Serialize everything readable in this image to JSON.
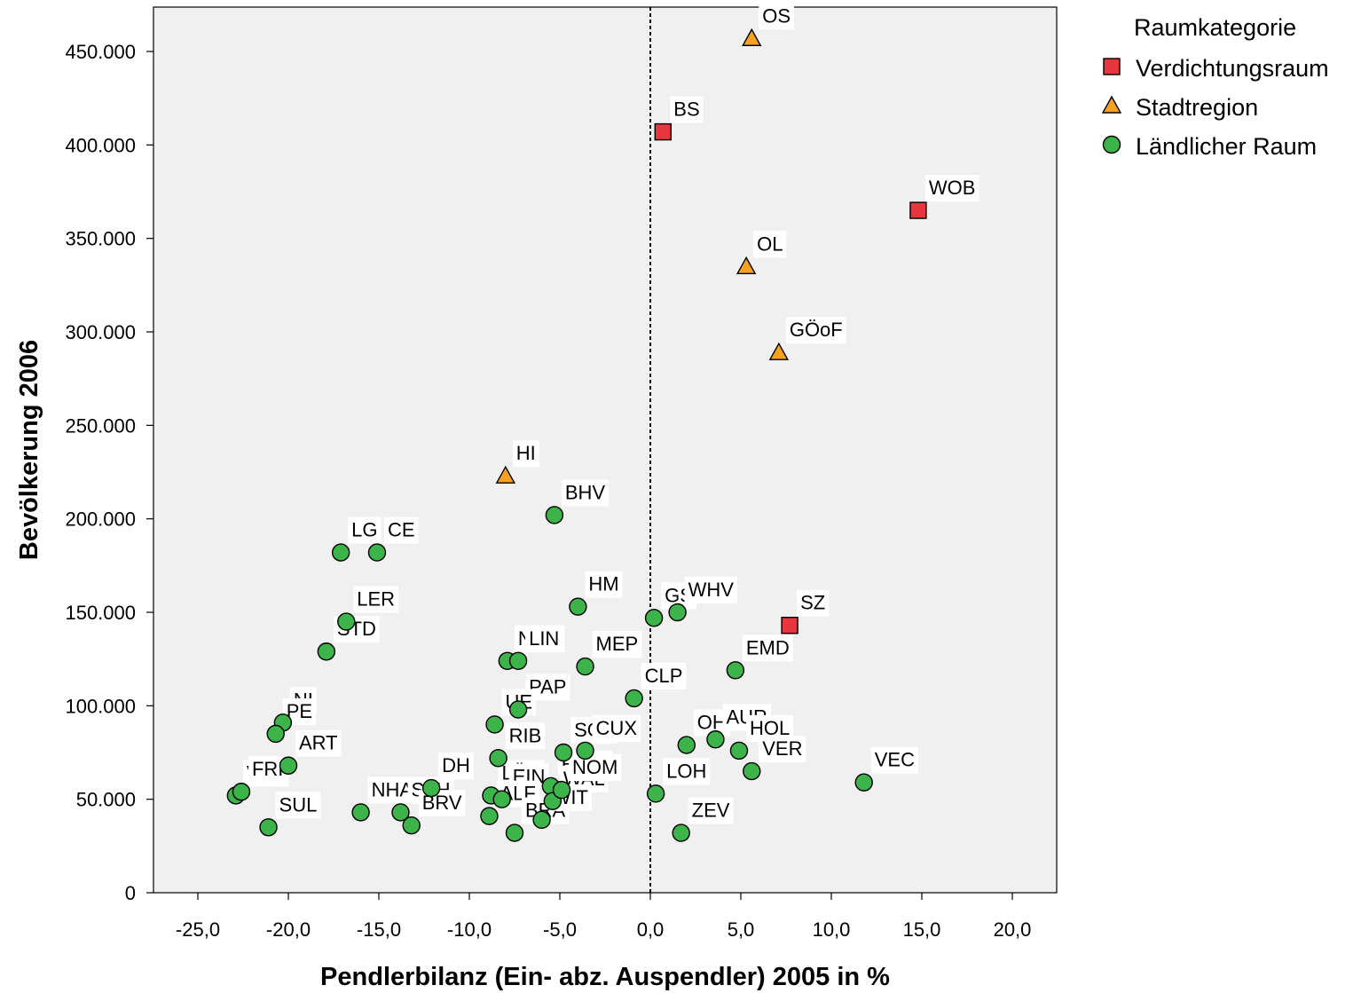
{
  "chart_data": {
    "type": "scatter",
    "xlabel": "Pendlerbilanz (Ein- abz. Auspendler) 2005 in %",
    "ylabel": "Bevölkerung 2006",
    "xlim": [
      -27.5,
      22.5
    ],
    "ylim": [
      0,
      470000
    ],
    "xticks": [
      -25,
      -20,
      -15,
      -10,
      -5,
      0,
      5,
      10,
      15,
      20
    ],
    "yticks": [
      0,
      50000,
      100000,
      150000,
      200000,
      250000,
      300000,
      350000,
      400000,
      450000
    ],
    "xtick_labels": [
      "-25,0",
      "-20,0",
      "-15,0",
      "-10,0",
      "-5,0",
      "0,0",
      "5,0",
      "10,0",
      "15,0",
      "20,0"
    ],
    "ytick_labels": [
      "0",
      "50.000",
      "100.000",
      "150.000",
      "200.000",
      "250.000",
      "300.000",
      "350.000",
      "400.000",
      "450.000"
    ],
    "reference_line": {
      "axis": "x",
      "value": 0,
      "style": "dashed"
    },
    "grid": false,
    "legend": {
      "title": "Raumkategorie",
      "position": "right",
      "entries": [
        {
          "label": "Verdichtungsraum",
          "marker": "square",
          "color": "#e8363f"
        },
        {
          "label": "Stadtregion",
          "marker": "triangle",
          "color": "#f5a223"
        },
        {
          "label": "Ländlicher Raum",
          "marker": "circle",
          "color": "#3cb44a"
        }
      ]
    },
    "series": [
      {
        "name": "Verdichtungsraum",
        "marker": "square",
        "color": "#e8363f",
        "points": [
          {
            "label": "BS",
            "x": 0.7,
            "y": 407000
          },
          {
            "label": "WOB",
            "x": 14.8,
            "y": 365000
          },
          {
            "label": "SZ",
            "x": 7.7,
            "y": 143000
          }
        ]
      },
      {
        "name": "Stadtregion",
        "marker": "triangle",
        "color": "#f5a223",
        "points": [
          {
            "label": "OS",
            "x": 5.6,
            "y": 457000
          },
          {
            "label": "OL",
            "x": 5.3,
            "y": 335000
          },
          {
            "label": "GÖoF",
            "x": 7.1,
            "y": 289000
          },
          {
            "label": "HI",
            "x": -8.0,
            "y": 223000
          }
        ]
      },
      {
        "name": "Ländlicher Raum",
        "marker": "circle",
        "color": "#3cb44a",
        "points": [
          {
            "label": "BHV",
            "x": -5.3,
            "y": 202000
          },
          {
            "label": "LG",
            "x": -17.1,
            "y": 182000
          },
          {
            "label": "CE",
            "x": -15.1,
            "y": 182000
          },
          {
            "label": "LER",
            "x": -16.8,
            "y": 145000
          },
          {
            "label": "STD",
            "x": -17.9,
            "y": 129000
          },
          {
            "label": "HM",
            "x": -4.0,
            "y": 153000
          },
          {
            "label": "GS",
            "x": 0.2,
            "y": 147000
          },
          {
            "label": "WHV",
            "x": 1.5,
            "y": 150000
          },
          {
            "label": "NOH",
            "x": -7.9,
            "y": 124000
          },
          {
            "label": "LIN",
            "x": -7.3,
            "y": 124000
          },
          {
            "label": "MEP",
            "x": -3.6,
            "y": 121000
          },
          {
            "label": "EMD",
            "x": 4.7,
            "y": 119000
          },
          {
            "label": "CLP",
            "x": -0.9,
            "y": 104000
          },
          {
            "label": "PAP",
            "x": -7.3,
            "y": 98000
          },
          {
            "label": "UE",
            "x": -8.6,
            "y": 90000
          },
          {
            "label": "NI",
            "x": -20.3,
            "y": 91000
          },
          {
            "label": "PE",
            "x": -20.7,
            "y": 85000
          },
          {
            "label": "ART",
            "x": -20.0,
            "y": 68000
          },
          {
            "label": "RIB",
            "x": -8.4,
            "y": 72000
          },
          {
            "label": "SOL",
            "x": -4.8,
            "y": 75000
          },
          {
            "label": "CUX",
            "x": -3.6,
            "y": 76000
          },
          {
            "label": "OH",
            "x": 2.0,
            "y": 79000
          },
          {
            "label": "AUR",
            "x": 3.6,
            "y": 82000
          },
          {
            "label": "HOL",
            "x": 4.9,
            "y": 76000
          },
          {
            "label": "VER",
            "x": 5.6,
            "y": 65000
          },
          {
            "label": "VEC",
            "x": 11.8,
            "y": 59000
          },
          {
            "label": "VAR",
            "x": -22.9,
            "y": 52000
          },
          {
            "label": "FRI",
            "x": -22.6,
            "y": 54000
          },
          {
            "label": "SUL",
            "x": -21.1,
            "y": 35000
          },
          {
            "label": "NHA",
            "x": -16.0,
            "y": 43000
          },
          {
            "label": "STH",
            "x": -13.8,
            "y": 43000
          },
          {
            "label": "BRV",
            "x": -13.2,
            "y": 36000
          },
          {
            "label": "DH",
            "x": -12.1,
            "y": 56000
          },
          {
            "label": "LÜC",
            "x": -8.8,
            "y": 52000
          },
          {
            "label": "EIN",
            "x": -8.2,
            "y": 50000
          },
          {
            "label": "ALF",
            "x": -8.9,
            "y": 41000
          },
          {
            "label": "BRA",
            "x": -7.5,
            "y": 32000
          },
          {
            "label": "ROW",
            "x": -5.5,
            "y": 57000
          },
          {
            "label": "WAL",
            "x": -5.4,
            "y": 49000
          },
          {
            "label": "NOM",
            "x": -4.9,
            "y": 55000
          },
          {
            "label": "WIT",
            "x": -6.0,
            "y": 39000
          },
          {
            "label": "LOH",
            "x": 0.3,
            "y": 53000
          },
          {
            "label": "ZEV",
            "x": 1.7,
            "y": 32000
          }
        ]
      }
    ]
  }
}
